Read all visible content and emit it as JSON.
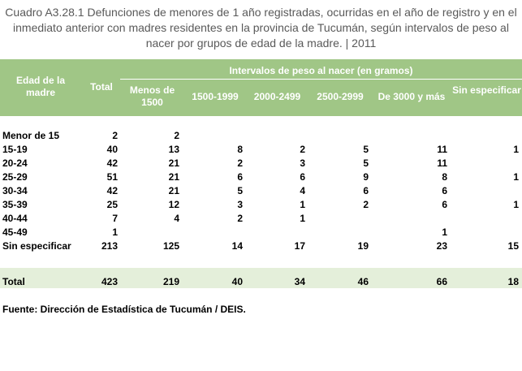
{
  "title": "Cuadro A3.28.1 Defunciones de menores de 1 año registradas, ocurridas en el año de registro y en el inmediato anterior con madres residentes en la provincia de Tucumán, según intervalos de peso al nacer por grupos de edad de la madre. | 2011",
  "table": {
    "header": {
      "age": "Edad de la madre",
      "total": "Total",
      "group": "Intervalos de peso al nacer (en gramos)",
      "columns": [
        "Menos de 1500",
        "1500-1999",
        "2000-2499",
        "2500-2999",
        "De 3000 y más",
        "Sin especificar"
      ]
    },
    "rows": [
      {
        "label": "Menor de 15",
        "values": [
          2,
          2,
          null,
          null,
          null,
          null,
          null
        ]
      },
      {
        "label": "15-19",
        "values": [
          40,
          13,
          8,
          2,
          5,
          11,
          1
        ]
      },
      {
        "label": "20-24",
        "values": [
          42,
          21,
          2,
          3,
          5,
          11,
          null
        ]
      },
      {
        "label": "25-29",
        "values": [
          51,
          21,
          6,
          6,
          9,
          8,
          1
        ]
      },
      {
        "label": "30-34",
        "values": [
          42,
          21,
          5,
          4,
          6,
          6,
          null
        ]
      },
      {
        "label": "35-39",
        "values": [
          25,
          12,
          3,
          1,
          2,
          6,
          1
        ]
      },
      {
        "label": "40-44",
        "values": [
          7,
          4,
          2,
          1,
          null,
          null,
          null
        ]
      },
      {
        "label": "45-49",
        "values": [
          1,
          null,
          null,
          null,
          null,
          1,
          null
        ]
      },
      {
        "label": "Sin especificar",
        "values": [
          213,
          125,
          14,
          17,
          19,
          23,
          15
        ]
      }
    ],
    "total": {
      "label": "Total",
      "values": [
        423,
        219,
        40,
        34,
        46,
        66,
        18
      ]
    }
  },
  "source": "Fuente: Dirección de Estadística de Tucumán / DEIS."
}
